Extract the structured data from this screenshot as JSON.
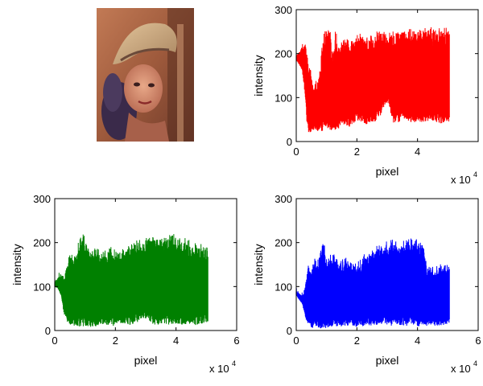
{
  "image": {
    "icon": "portrait-photo",
    "description_colors": [
      "#8a4b2e",
      "#c9a27a",
      "#3b1f2b",
      "#d98a6a"
    ]
  },
  "chart_data": [
    {
      "type": "area",
      "position": "top-right",
      "color": "#ff0000",
      "xlabel": "pixel",
      "ylabel": "intensity",
      "xlim": [
        0,
        6
      ],
      "ylim": [
        0,
        300
      ],
      "xticks": [
        "0",
        "2",
        "4",
        ""
      ],
      "yticks": [
        "0",
        "100",
        "200",
        "300"
      ],
      "x_multiplier": "x 10",
      "x_multiplier_exp": "4",
      "x_range": [
        0,
        5.05
      ],
      "upper_envelope": [
        [
          0.0,
          195
        ],
        [
          0.1,
          205
        ],
        [
          0.2,
          215
        ],
        [
          0.3,
          220
        ],
        [
          0.35,
          200
        ],
        [
          0.4,
          180
        ],
        [
          0.5,
          150
        ],
        [
          0.6,
          120
        ],
        [
          0.7,
          140
        ],
        [
          0.8,
          180
        ],
        [
          0.9,
          240
        ],
        [
          1.0,
          250
        ],
        [
          1.1,
          255
        ],
        [
          1.2,
          200
        ],
        [
          1.3,
          250
        ],
        [
          1.4,
          210
        ],
        [
          1.6,
          230
        ],
        [
          1.8,
          220
        ],
        [
          2.0,
          240
        ],
        [
          2.2,
          235
        ],
        [
          2.4,
          230
        ],
        [
          2.6,
          245
        ],
        [
          2.8,
          250
        ],
        [
          3.0,
          240
        ],
        [
          3.2,
          245
        ],
        [
          3.4,
          250
        ],
        [
          3.6,
          250
        ],
        [
          3.8,
          255
        ],
        [
          4.0,
          250
        ],
        [
          4.2,
          255
        ],
        [
          4.4,
          255
        ],
        [
          4.6,
          250
        ],
        [
          4.8,
          255
        ],
        [
          5.05,
          250
        ]
      ],
      "lower_envelope": [
        [
          0.0,
          185
        ],
        [
          0.1,
          175
        ],
        [
          0.2,
          160
        ],
        [
          0.3,
          100
        ],
        [
          0.35,
          40
        ],
        [
          0.4,
          20
        ],
        [
          0.6,
          25
        ],
        [
          0.8,
          20
        ],
        [
          1.0,
          30
        ],
        [
          1.2,
          25
        ],
        [
          1.4,
          30
        ],
        [
          1.6,
          40
        ],
        [
          1.8,
          30
        ],
        [
          2.0,
          45
        ],
        [
          2.2,
          40
        ],
        [
          2.4,
          35
        ],
        [
          2.6,
          45
        ],
        [
          2.8,
          60
        ],
        [
          2.9,
          80
        ],
        [
          3.0,
          90
        ],
        [
          3.1,
          70
        ],
        [
          3.2,
          40
        ],
        [
          3.4,
          45
        ],
        [
          3.6,
          50
        ],
        [
          3.8,
          40
        ],
        [
          4.0,
          45
        ],
        [
          4.2,
          40
        ],
        [
          4.4,
          50
        ],
        [
          4.6,
          45
        ],
        [
          4.8,
          40
        ],
        [
          5.05,
          45
        ]
      ]
    },
    {
      "type": "area",
      "position": "bottom-left",
      "color": "#008000",
      "xlabel": "pixel",
      "ylabel": "intensity",
      "xlim": [
        0,
        6
      ],
      "ylim": [
        0,
        300
      ],
      "xticks": [
        "0",
        "2",
        "4",
        "6"
      ],
      "yticks": [
        "0",
        "100",
        "200",
        "300"
      ],
      "x_multiplier": "x 10",
      "x_multiplier_exp": "4",
      "x_range": [
        0,
        5.05
      ],
      "upper_envelope": [
        [
          0.0,
          110
        ],
        [
          0.1,
          120
        ],
        [
          0.2,
          130
        ],
        [
          0.3,
          120
        ],
        [
          0.4,
          150
        ],
        [
          0.5,
          180
        ],
        [
          0.6,
          160
        ],
        [
          0.7,
          170
        ],
        [
          0.8,
          200
        ],
        [
          0.9,
          225
        ],
        [
          1.0,
          200
        ],
        [
          1.2,
          190
        ],
        [
          1.4,
          180
        ],
        [
          1.6,
          175
        ],
        [
          1.8,
          185
        ],
        [
          2.0,
          180
        ],
        [
          2.2,
          175
        ],
        [
          2.4,
          185
        ],
        [
          2.6,
          195
        ],
        [
          2.8,
          200
        ],
        [
          3.0,
          205
        ],
        [
          3.2,
          210
        ],
        [
          3.4,
          200
        ],
        [
          3.6,
          205
        ],
        [
          3.8,
          210
        ],
        [
          4.0,
          212
        ],
        [
          4.2,
          205
        ],
        [
          4.4,
          200
        ],
        [
          4.6,
          195
        ],
        [
          4.8,
          190
        ],
        [
          5.05,
          185
        ]
      ],
      "lower_envelope": [
        [
          0.0,
          100
        ],
        [
          0.1,
          95
        ],
        [
          0.2,
          80
        ],
        [
          0.3,
          40
        ],
        [
          0.4,
          20
        ],
        [
          0.5,
          10
        ],
        [
          0.6,
          8
        ],
        [
          0.8,
          5
        ],
        [
          1.0,
          10
        ],
        [
          1.2,
          8
        ],
        [
          1.4,
          10
        ],
        [
          1.6,
          15
        ],
        [
          1.8,
          12
        ],
        [
          2.0,
          10
        ],
        [
          2.2,
          15
        ],
        [
          2.4,
          12
        ],
        [
          2.6,
          15
        ],
        [
          2.8,
          20
        ],
        [
          2.9,
          30
        ],
        [
          3.0,
          25
        ],
        [
          3.2,
          15
        ],
        [
          3.4,
          12
        ],
        [
          3.6,
          15
        ],
        [
          3.8,
          10
        ],
        [
          4.0,
          15
        ],
        [
          4.2,
          12
        ],
        [
          4.4,
          15
        ],
        [
          4.6,
          12
        ],
        [
          4.8,
          15
        ],
        [
          5.05,
          20
        ]
      ]
    },
    {
      "type": "area",
      "position": "bottom-right",
      "color": "#0000ff",
      "xlabel": "pixel",
      "ylabel": "intensity",
      "xlim": [
        0,
        6
      ],
      "ylim": [
        0,
        300
      ],
      "xticks": [
        "0",
        "2",
        "4",
        "6"
      ],
      "yticks": [
        "0",
        "100",
        "200",
        "300"
      ],
      "x_multiplier": "x 10",
      "x_multiplier_exp": "4",
      "x_range": [
        0,
        5.05
      ],
      "upper_envelope": [
        [
          0.0,
          90
        ],
        [
          0.1,
          85
        ],
        [
          0.2,
          80
        ],
        [
          0.3,
          100
        ],
        [
          0.4,
          150
        ],
        [
          0.5,
          130
        ],
        [
          0.6,
          170
        ],
        [
          0.7,
          150
        ],
        [
          0.8,
          180
        ],
        [
          0.9,
          200
        ],
        [
          1.0,
          160
        ],
        [
          1.2,
          175
        ],
        [
          1.4,
          150
        ],
        [
          1.6,
          160
        ],
        [
          1.8,
          155
        ],
        [
          2.0,
          145
        ],
        [
          2.2,
          165
        ],
        [
          2.4,
          170
        ],
        [
          2.6,
          185
        ],
        [
          2.8,
          190
        ],
        [
          3.0,
          195
        ],
        [
          3.2,
          200
        ],
        [
          3.4,
          190
        ],
        [
          3.6,
          200
        ],
        [
          3.8,
          205
        ],
        [
          4.0,
          200
        ],
        [
          4.2,
          195
        ],
        [
          4.3,
          140
        ],
        [
          4.4,
          145
        ],
        [
          4.6,
          140
        ],
        [
          4.8,
          145
        ],
        [
          5.05,
          140
        ]
      ],
      "lower_envelope": [
        [
          0.0,
          80
        ],
        [
          0.1,
          70
        ],
        [
          0.2,
          60
        ],
        [
          0.3,
          30
        ],
        [
          0.4,
          10
        ],
        [
          0.5,
          5
        ],
        [
          0.6,
          8
        ],
        [
          0.8,
          5
        ],
        [
          1.0,
          6
        ],
        [
          1.2,
          8
        ],
        [
          1.4,
          10
        ],
        [
          1.6,
          8
        ],
        [
          1.8,
          10
        ],
        [
          2.0,
          8
        ],
        [
          2.2,
          10
        ],
        [
          2.4,
          12
        ],
        [
          2.6,
          10
        ],
        [
          2.8,
          15
        ],
        [
          3.0,
          12
        ],
        [
          3.2,
          10
        ],
        [
          3.4,
          12
        ],
        [
          3.6,
          10
        ],
        [
          3.8,
          12
        ],
        [
          4.0,
          10
        ],
        [
          4.2,
          8
        ],
        [
          4.4,
          12
        ],
        [
          4.6,
          10
        ],
        [
          4.8,
          12
        ],
        [
          5.05,
          15
        ]
      ]
    }
  ]
}
